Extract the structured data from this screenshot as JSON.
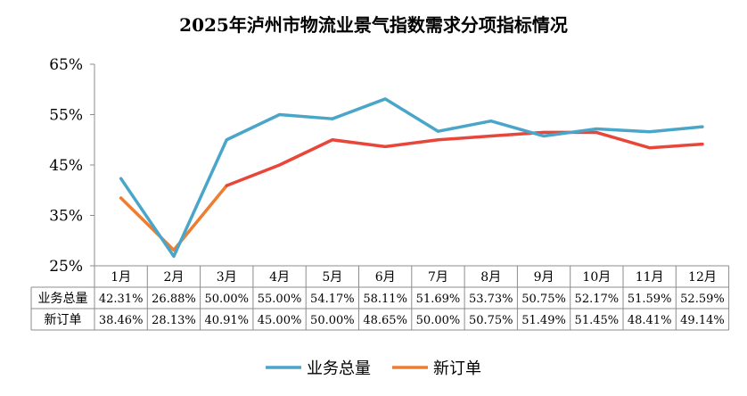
{
  "chart_data": {
    "type": "line",
    "title": "2025年泸州市物流业景气指数需求分项指标情况",
    "categories": [
      "1月",
      "2月",
      "3月",
      "4月",
      "5月",
      "6月",
      "7月",
      "8月",
      "9月",
      "10月",
      "11月",
      "12月"
    ],
    "y_ticks": [
      "65%",
      "55%",
      "45%",
      "35%",
      "25%"
    ],
    "ylim": [
      25,
      65
    ],
    "grid": false,
    "legend": "bottom",
    "series": [
      {
        "name": "业务总量",
        "color": "#4AA6C9",
        "values": [
          42.31,
          26.88,
          50.0,
          55.0,
          54.17,
          58.11,
          51.69,
          53.73,
          50.75,
          52.17,
          51.59,
          52.59
        ],
        "labels": [
          "42.31%",
          "26.88%",
          "50.00%",
          "55.00%",
          "54.17%",
          "58.11%",
          "51.69%",
          "53.73%",
          "50.75%",
          "52.17%",
          "51.59%",
          "52.59%"
        ]
      },
      {
        "name": "新订单",
        "color": "#E8463A",
        "color_start": "#ED7D31",
        "values": [
          38.46,
          28.13,
          40.91,
          45.0,
          50.0,
          48.65,
          50.0,
          50.75,
          51.49,
          51.45,
          48.41,
          49.14
        ],
        "labels": [
          "38.46%",
          "28.13%",
          "40.91%",
          "45.00%",
          "50.00%",
          "48.65%",
          "50.00%",
          "50.75%",
          "51.49%",
          "51.45%",
          "48.41%",
          "49.14%"
        ]
      }
    ]
  }
}
